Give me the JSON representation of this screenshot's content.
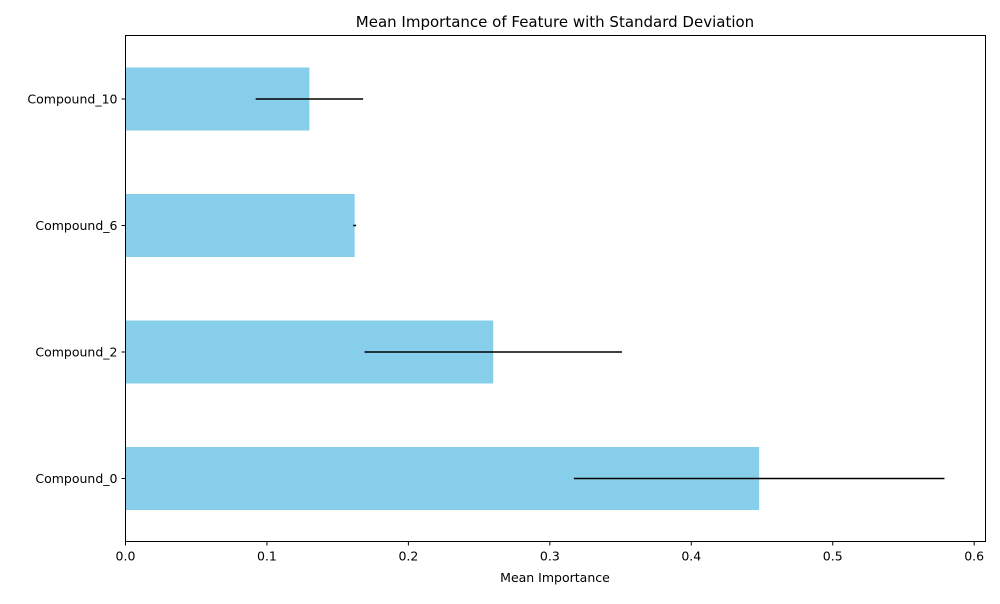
{
  "chart_data": {
    "type": "bar",
    "orientation": "horizontal",
    "title": "Mean Importance of Feature with Standard Deviation",
    "xlabel": "Mean Importance",
    "ylabel": "",
    "xlim": [
      0.0,
      0.608
    ],
    "xticks": [
      0.0,
      0.1,
      0.2,
      0.3,
      0.4,
      0.5,
      0.6
    ],
    "xtick_labels": [
      "0.0",
      "0.1",
      "0.2",
      "0.3",
      "0.4",
      "0.5",
      "0.6"
    ],
    "categories": [
      "Compound_0",
      "Compound_2",
      "Compound_6",
      "Compound_10"
    ],
    "values": [
      0.448,
      0.26,
      0.162,
      0.13
    ],
    "errors": [
      0.131,
      0.091,
      0.001,
      0.038
    ],
    "bar_color": "#87ceeb",
    "error_color": "#000000",
    "grid": false,
    "legend": null
  }
}
